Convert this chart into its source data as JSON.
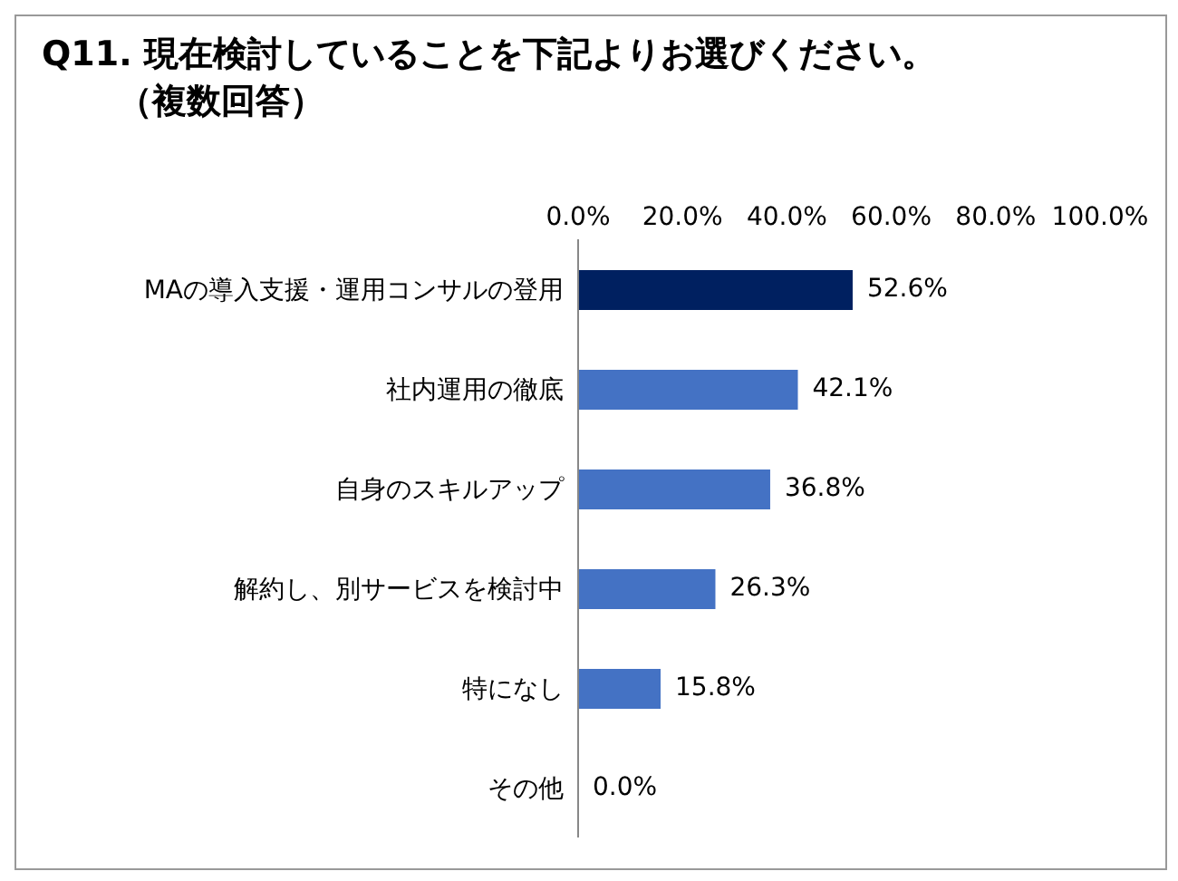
{
  "chart_data": {
    "type": "bar",
    "orientation": "horizontal",
    "title": "Q11. 現在検討していることを下記よりお選びください。",
    "subtitle": "（複数回答）",
    "categories": [
      "MAの導入支援・運用コンサルの登用",
      "社内運用の徹底",
      "自身のスキルアップ",
      "解約し、別サービスを検討中",
      "特になし",
      "その他"
    ],
    "values": [
      52.6,
      42.1,
      36.8,
      26.3,
      15.8,
      0.0
    ],
    "colors": [
      "#002060",
      "#4472c4",
      "#4472c4",
      "#4472c4",
      "#4472c4",
      "#4472c4"
    ],
    "value_labels": [
      "52.6%",
      "42.1%",
      "36.8%",
      "26.3%",
      "15.8%",
      "0.0%"
    ],
    "xlim": [
      0,
      100
    ],
    "xticks": [
      {
        "value": 0,
        "label": "0.0%"
      },
      {
        "value": 20,
        "label": "20.0%"
      },
      {
        "value": 40,
        "label": "40.0%"
      },
      {
        "value": 60,
        "label": "60.0%"
      },
      {
        "value": 80,
        "label": "80.0%"
      },
      {
        "value": 100,
        "label": "100.0%"
      }
    ],
    "grid": false,
    "legend": false
  }
}
